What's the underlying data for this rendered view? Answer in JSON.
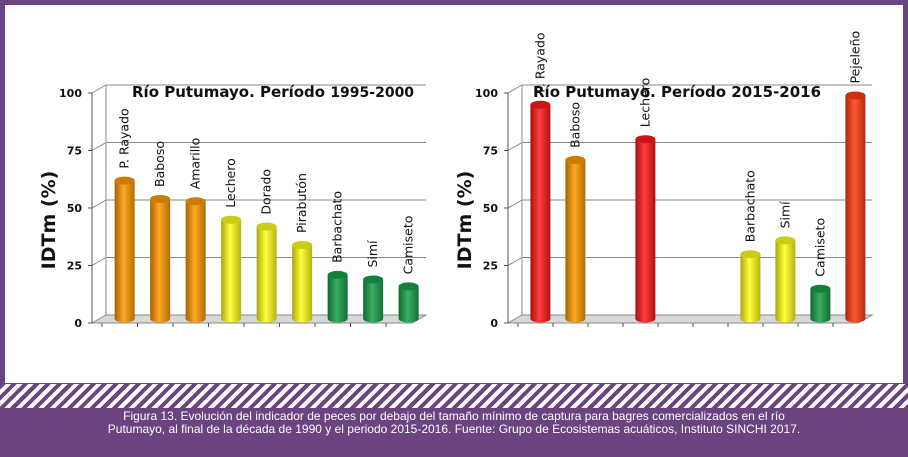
{
  "caption": {
    "line1": "Figura 13. Evolución del indicador de peces por debajo del tamaño mínimo de captura para bagres comercializados en el río",
    "line2": "Putumayo, al final de la década de 1990 y el periodo 2015-2016. Fuente: Grupo de Ecosistemas acuáticos, Instituto SINCHI 2017."
  },
  "colors": {
    "red": "#ff1a1a",
    "orange": "#ff9900",
    "yellow": "#ffff1a",
    "green": "#17a04a",
    "red_orange": "#ff3b12"
  },
  "chart_data": [
    {
      "type": "bar",
      "title_main": "Río Putumayo. Período ",
      "title_period": "1995-2000",
      "ylabel": "IDTm (%)",
      "xlabel": "",
      "ylim": [
        0,
        100
      ],
      "yticks": [
        "0",
        "25",
        "50",
        "75",
        "100"
      ],
      "grid": true,
      "categories": [
        "P. Rayado",
        "Baboso",
        "Amarillo",
        "Lechero",
        "Dorado",
        "Pirabutón",
        "Barbachato",
        "Simí",
        "Camiseto"
      ],
      "values": [
        60,
        52,
        51,
        43,
        40,
        32,
        19,
        17,
        14
      ],
      "colors": [
        "orange",
        "orange",
        "orange",
        "yellow",
        "yellow",
        "yellow",
        "green",
        "green",
        "green"
      ]
    },
    {
      "type": "bar",
      "title_main": "Río Putumayo. Período 2015-2016",
      "title_period": "",
      "ylabel": "IDTm (%)",
      "xlabel": "",
      "ylim": [
        0,
        100
      ],
      "yticks": [
        "0",
        "25",
        "50",
        "75",
        "100"
      ],
      "grid": true,
      "categories": [
        "P. Rayado",
        "Baboso",
        "",
        "Lechero",
        "",
        "",
        "Barbachato",
        "Simí",
        "Camiseto",
        "Pejeleño"
      ],
      "values": [
        93,
        69,
        null,
        78,
        null,
        null,
        28,
        34,
        13,
        97
      ],
      "colors": [
        "red",
        "orange",
        null,
        "red",
        null,
        null,
        "yellow",
        "yellow",
        "green",
        "red_orange"
      ]
    }
  ]
}
